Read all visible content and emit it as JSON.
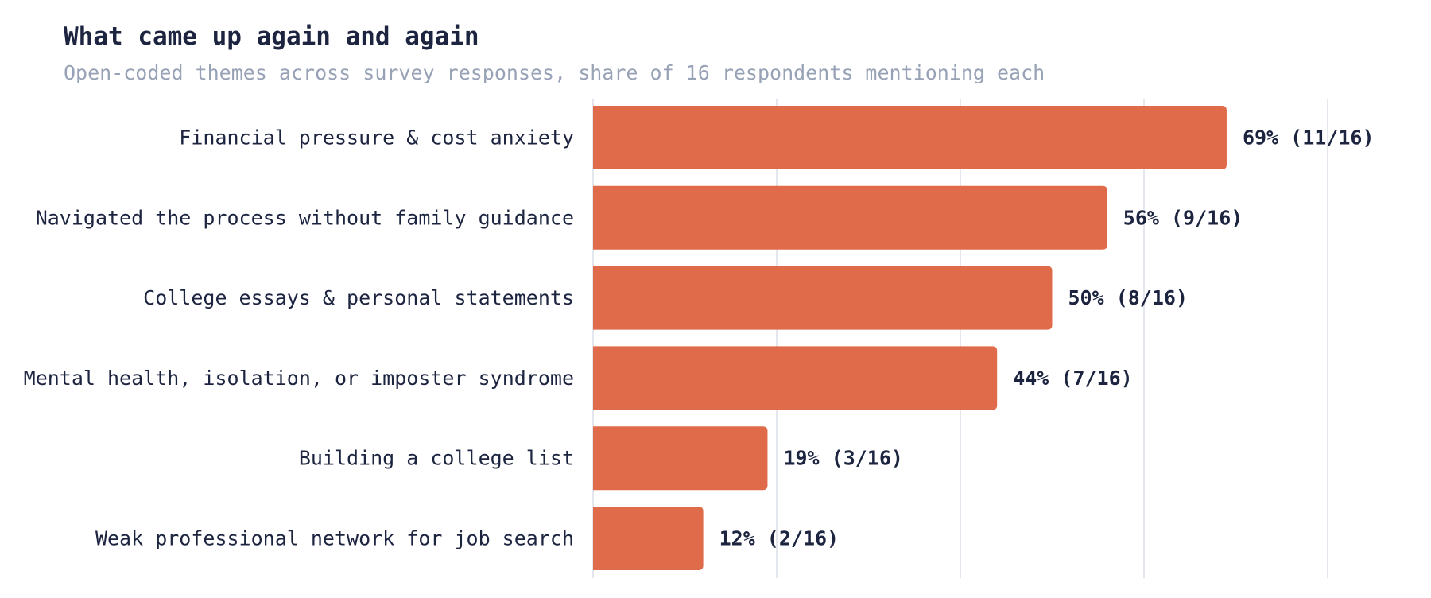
{
  "chart_data": {
    "type": "bar",
    "orientation": "horizontal",
    "title": "What came up again and again",
    "subtitle": "Open-coded themes across survey responses, share of 16 respondents mentioning each",
    "xlabel": "",
    "ylabel": "",
    "total": 16,
    "xlim": [
      0,
      100
    ],
    "grid": true,
    "categories": [
      "Financial pressure & cost anxiety",
      "Navigated the process without family guidance",
      "College essays & personal statements",
      "Mental health, isolation, or imposter syndrome",
      "Building a college list",
      "Weak professional network for job search"
    ],
    "counts": [
      11,
      9,
      8,
      7,
      3,
      2
    ],
    "values": [
      69,
      56,
      50,
      44,
      19,
      12
    ],
    "labels": [
      "69% (11/16)",
      "56% (9/16)",
      "50% (8/16)",
      "44% (7/16)",
      "19% (3/16)",
      "12% (2/16)"
    ]
  },
  "colors": {
    "bar": "#df6b4a",
    "grid": "#dcdfe8",
    "text": "#1c2440",
    "subtitle": "#98a2b6"
  }
}
